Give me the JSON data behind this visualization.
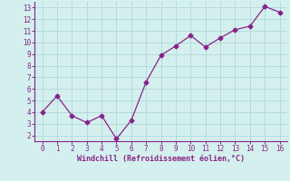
{
  "x": [
    0,
    1,
    2,
    3,
    4,
    5,
    6,
    7,
    8,
    9,
    10,
    11,
    12,
    13,
    14,
    15,
    16
  ],
  "y": [
    4.0,
    5.4,
    3.7,
    3.1,
    3.7,
    1.7,
    3.3,
    6.6,
    8.9,
    9.7,
    10.6,
    9.6,
    10.4,
    11.1,
    11.4,
    13.1,
    12.6
  ],
  "line_color": "#882288",
  "marker": "D",
  "marker_size": 2.5,
  "bg_color": "#d4f0ee",
  "grid_color": "#b0d8d8",
  "xlabel": "Windchill (Refroidissement éolien,°C)",
  "xlabel_color": "#882288",
  "tick_color": "#882288",
  "spine_color": "#882288",
  "ylim": [
    1.5,
    13.5
  ],
  "xlim": [
    -0.5,
    16.5
  ],
  "yticks": [
    2,
    3,
    4,
    5,
    6,
    7,
    8,
    9,
    10,
    11,
    12,
    13
  ],
  "xticks": [
    0,
    1,
    2,
    3,
    4,
    5,
    6,
    7,
    8,
    9,
    10,
    11,
    12,
    13,
    14,
    15,
    16
  ]
}
